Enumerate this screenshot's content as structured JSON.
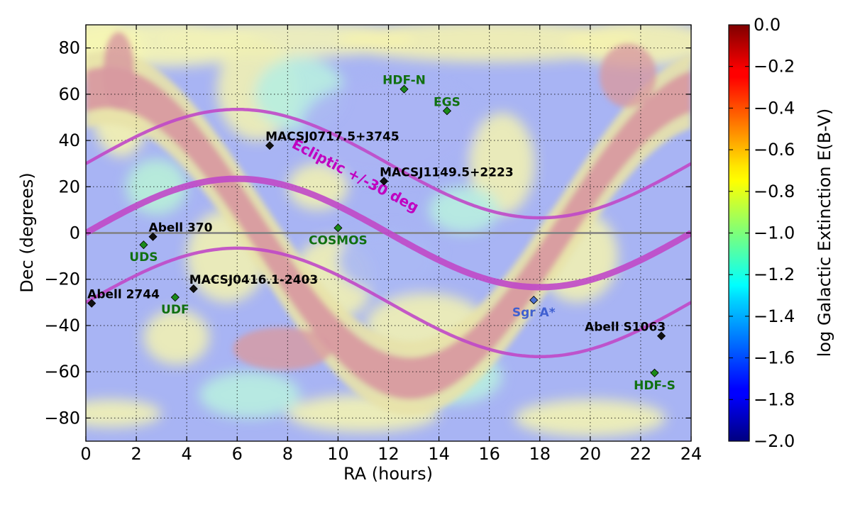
{
  "chart_data": {
    "type": "scatter",
    "xlabel": "RA (hours)",
    "ylabel": "Dec (degrees)",
    "xlim": [
      0,
      24
    ],
    "ylim": [
      -90,
      90
    ],
    "xticks": [
      0,
      2,
      4,
      6,
      8,
      10,
      12,
      14,
      16,
      18,
      20,
      22,
      24
    ],
    "yticks": [
      -80,
      -60,
      -40,
      -20,
      0,
      20,
      40,
      60,
      80
    ],
    "grid": true,
    "equator_line": {
      "dec": 0,
      "color": "#808080"
    },
    "ecliptic": {
      "label": "Ecliptic +/-30 deg",
      "label_ra": 10.6,
      "label_dec": 23,
      "obliquity_deg": 23.44,
      "offset_deg": 30,
      "color": "#c048c8",
      "label_color": "#c000c0"
    },
    "colorbar": {
      "label": "log Galactic Extinction E(B-V)",
      "range": [
        -2.0,
        0.0
      ],
      "ticks": [
        "0.0",
        "−0.2",
        "−0.4",
        "−0.6",
        "−0.8",
        "−1.0",
        "−1.2",
        "−1.4",
        "−1.6",
        "−1.8",
        "−2.0"
      ],
      "colormap": "jet"
    },
    "galactic_plane": {
      "color": "#d89aa0"
    },
    "points": [
      {
        "name": "HDF-N",
        "ra": 12.62,
        "dec": 62.2,
        "color": "#1a8a1a",
        "label_color": "#107010",
        "label_pos": "above"
      },
      {
        "name": "EGS",
        "ra": 14.32,
        "dec": 52.8,
        "color": "#1a8a1a",
        "label_color": "#107010",
        "label_pos": "above"
      },
      {
        "name": "MACSJ0717.5+3745",
        "ra": 7.29,
        "dec": 37.8,
        "color": "#111111",
        "label_color": "#000000",
        "label_pos": "above-right"
      },
      {
        "name": "MACSJ1149.5+2223",
        "ra": 11.82,
        "dec": 22.4,
        "color": "#111111",
        "label_color": "#000000",
        "label_pos": "above-right"
      },
      {
        "name": "COSMOS",
        "ra": 10.0,
        "dec": 2.2,
        "color": "#1a8a1a",
        "label_color": "#107010",
        "label_pos": "below"
      },
      {
        "name": "Abell 370",
        "ra": 2.66,
        "dec": -1.6,
        "color": "#111111",
        "label_color": "#000000",
        "label_pos": "above-right"
      },
      {
        "name": "UDS",
        "ra": 2.29,
        "dec": -5.1,
        "color": "#1a8a1a",
        "label_color": "#107010",
        "label_pos": "below"
      },
      {
        "name": "MACSJ0416.1-2403",
        "ra": 4.27,
        "dec": -24.1,
        "color": "#111111",
        "label_color": "#000000",
        "label_pos": "above-right"
      },
      {
        "name": "Abell 2744",
        "ra": 0.23,
        "dec": -30.4,
        "color": "#111111",
        "label_color": "#000000",
        "label_pos": "above-right"
      },
      {
        "name": "UDF",
        "ra": 3.54,
        "dec": -27.8,
        "color": "#1a8a1a",
        "label_color": "#107010",
        "label_pos": "below"
      },
      {
        "name": "Sgr A*",
        "ra": 17.76,
        "dec": -29.0,
        "color": "#4a6fd0",
        "label_color": "#3f5fd0",
        "label_pos": "below"
      },
      {
        "name": "Abell S1063",
        "ra": 22.82,
        "dec": -44.5,
        "color": "#111111",
        "label_color": "#000000",
        "label_pos": "above-left"
      },
      {
        "name": "HDF-S",
        "ra": 22.55,
        "dec": -60.5,
        "color": "#1a8a1a",
        "label_color": "#107010",
        "label_pos": "below"
      }
    ]
  }
}
